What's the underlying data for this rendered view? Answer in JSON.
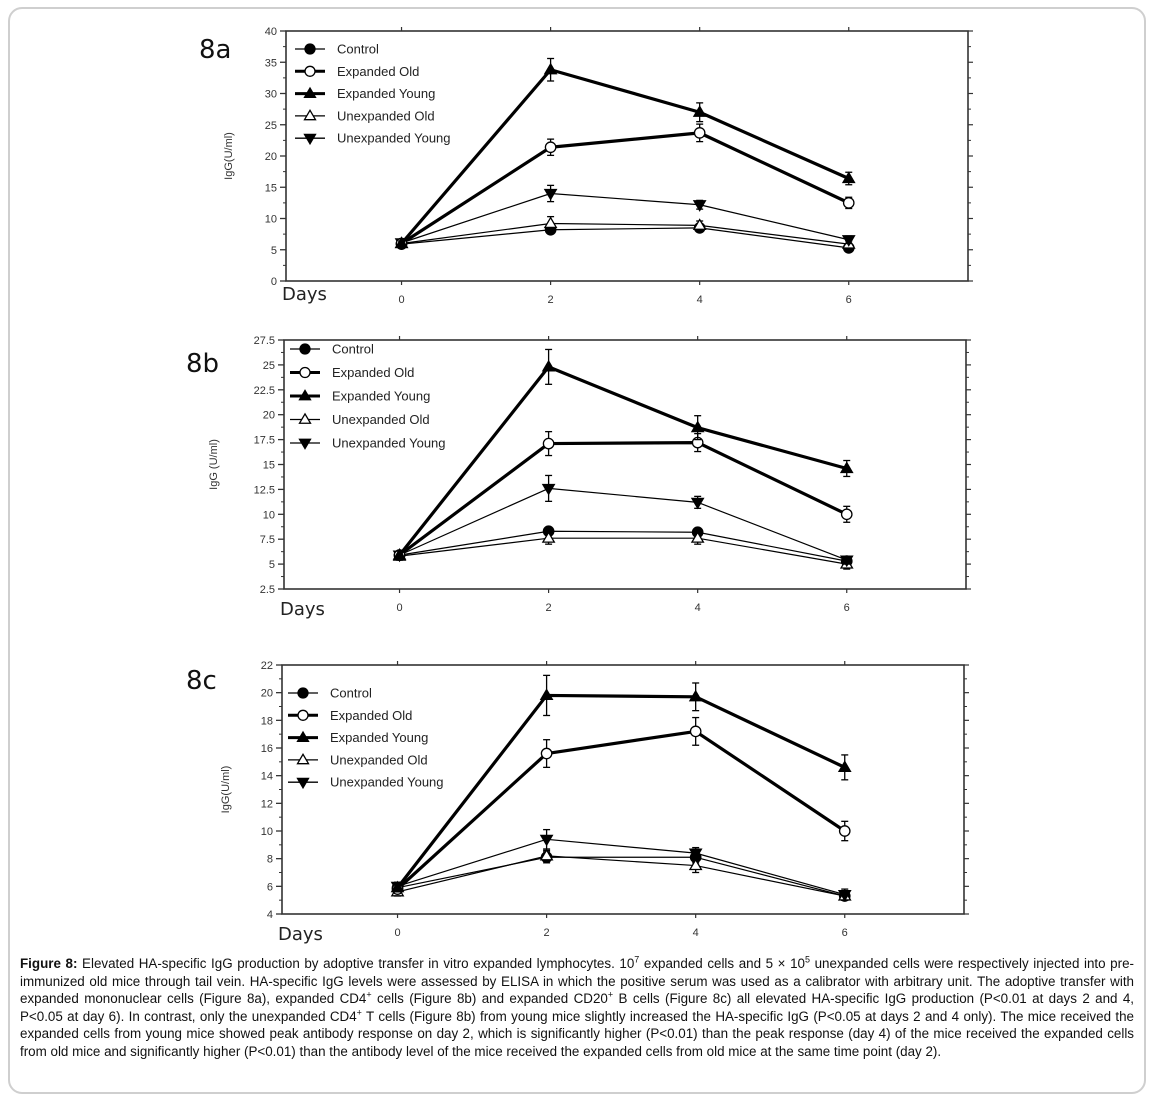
{
  "figure": {
    "caption_label": "Figure 8:",
    "caption_parts": [
      {
        "t": "Elevated HA-specific IgG production by adoptive transfer in vitro expanded lymphocytes. 10"
      },
      {
        "sup": "7"
      },
      {
        "t": " expanded cells and 5 × 10"
      },
      {
        "sup": "5"
      },
      {
        "t": " unexpanded cells were respectively injected into pre-immunized old mice through tail vein.  HA-specific IgG levels were assessed by ELISA in which the positive serum was used as a calibrator with arbitrary unit.  The adoptive transfer with expanded mononuclear cells (Figure 8a), expanded CD4"
      },
      {
        "sup": "+"
      },
      {
        "t": " cells (Figure 8b) and expanded CD20"
      },
      {
        "sup": "+"
      },
      {
        "t": " B cells (Figure 8c) all elevated HA-specific IgG production (P<0.01 at days 2 and 4, P<0.05 at day 6). In contrast, only the unexpanded CD4"
      },
      {
        "sup": "+"
      },
      {
        "t": " T cells (Figure 8b) from young mice slightly increased the HA-specific IgG (P<0.05 at days 2 and 4 only). The mice received the expanded cells from young mice showed peak antibody response on day 2, which is significantly higher (P<0.01) than the peak response (day 4) of the mice received the expanded cells from old mice and significantly higher (P<0.01) than the antibody level of the mice received the expanded cells from old mice at the same time point (day 2)."
      }
    ]
  },
  "chart_data": [
    {
      "type": "line",
      "panel": "8a",
      "title": "8a",
      "xlabel": "Days",
      "ylabel": "IgG(U/ml)",
      "x": [
        0,
        2,
        4,
        6
      ],
      "xticks": [
        "0",
        "2",
        "4",
        "6"
      ],
      "xlim": [
        -1.55,
        7.6
      ],
      "ylim": [
        0,
        40
      ],
      "yticks": [
        "0",
        "5",
        "10",
        "15",
        "20",
        "25",
        "30",
        "35",
        "40"
      ],
      "ytick_values": [
        0,
        5,
        10,
        15,
        20,
        25,
        30,
        35,
        40
      ],
      "grid": false,
      "legend_position": "top-left",
      "series": [
        {
          "name": "Control",
          "marker": "circle-filled",
          "weight": "thin",
          "values": [
            5.9,
            8.2,
            8.5,
            5.3
          ],
          "errors": [
            0.4,
            0.5,
            0.5,
            0.4
          ]
        },
        {
          "name": "Expanded Old",
          "marker": "circle-open",
          "weight": "thick",
          "values": [
            6.0,
            21.4,
            23.7,
            12.5
          ],
          "errors": [
            0.4,
            1.3,
            1.4,
            0.9
          ]
        },
        {
          "name": "Expanded Young",
          "marker": "triangle-up-filled",
          "weight": "thick",
          "values": [
            6.0,
            33.8,
            27.0,
            16.4
          ],
          "errors": [
            0.4,
            1.8,
            1.5,
            1.0
          ]
        },
        {
          "name": "Unexpanded Old",
          "marker": "triangle-up-open",
          "weight": "thin",
          "values": [
            6.0,
            9.2,
            8.9,
            5.9
          ],
          "errors": [
            0.4,
            1.1,
            0.7,
            0.5
          ]
        },
        {
          "name": "Unexpanded Young",
          "marker": "triangle-down-filled",
          "weight": "thin",
          "values": [
            6.1,
            14.0,
            12.2,
            6.6
          ],
          "errors": [
            0.4,
            1.3,
            0.7,
            0.6
          ]
        }
      ]
    },
    {
      "type": "line",
      "panel": "8b",
      "title": "8b",
      "xlabel": "Days",
      "ylabel": "IgG (U/ml)",
      "x": [
        0,
        2,
        4,
        6
      ],
      "xticks": [
        "0",
        "2",
        "4",
        "6"
      ],
      "xlim": [
        -1.55,
        7.6
      ],
      "ylim": [
        2.5,
        27.5
      ],
      "yticks": [
        "2.5",
        "5",
        "7.5",
        "10",
        "12.5",
        "15",
        "17.5",
        "20",
        "22.5",
        "25",
        "27.5"
      ],
      "ytick_values": [
        2.5,
        5,
        7.5,
        10,
        12.5,
        15,
        17.5,
        20,
        22.5,
        25,
        27.5
      ],
      "grid": false,
      "legend_position": "top-left",
      "series": [
        {
          "name": "Control",
          "marker": "circle-filled",
          "weight": "thin",
          "values": [
            5.9,
            8.3,
            8.2,
            5.3
          ],
          "errors": [
            0.4,
            0.4,
            0.4,
            0.4
          ]
        },
        {
          "name": "Expanded Old",
          "marker": "circle-open",
          "weight": "thick",
          "values": [
            5.9,
            17.1,
            17.2,
            10.0
          ],
          "errors": [
            0.4,
            1.2,
            0.9,
            0.8
          ]
        },
        {
          "name": "Expanded Young",
          "marker": "triangle-up-filled",
          "weight": "thick",
          "values": [
            5.9,
            24.8,
            18.7,
            14.6
          ],
          "errors": [
            0.4,
            1.75,
            1.2,
            0.8
          ]
        },
        {
          "name": "Unexpanded Old",
          "marker": "triangle-up-open",
          "weight": "thin",
          "values": [
            5.8,
            7.6,
            7.6,
            5.0
          ],
          "errors": [
            0.4,
            0.6,
            0.6,
            0.5
          ]
        },
        {
          "name": "Unexpanded Young",
          "marker": "triangle-down-filled",
          "weight": "thin",
          "values": [
            5.9,
            12.6,
            11.2,
            5.4
          ],
          "errors": [
            0.4,
            1.3,
            0.6,
            0.4
          ]
        }
      ]
    },
    {
      "type": "line",
      "panel": "8c",
      "title": "8c",
      "xlabel": "Days",
      "ylabel": "IgG(U/ml)",
      "x": [
        0,
        2,
        4,
        6
      ],
      "xticks": [
        "0",
        "2",
        "4",
        "6"
      ],
      "xlim": [
        -1.55,
        7.6
      ],
      "ylim": [
        4,
        22
      ],
      "yticks": [
        "4",
        "6",
        "8",
        "10",
        "12",
        "14",
        "16",
        "18",
        "20",
        "22"
      ],
      "ytick_values": [
        4,
        6,
        8,
        10,
        12,
        14,
        16,
        18,
        20,
        22
      ],
      "grid": false,
      "legend_position": "top-left",
      "series": [
        {
          "name": "Control",
          "marker": "circle-filled",
          "weight": "thin",
          "values": [
            5.9,
            8.1,
            8.1,
            5.3
          ],
          "errors": [
            0.3,
            0.4,
            0.4,
            0.3
          ]
        },
        {
          "name": "Expanded Old",
          "marker": "circle-open",
          "weight": "thick",
          "values": [
            5.8,
            15.6,
            17.2,
            10.0
          ],
          "errors": [
            0.3,
            1.0,
            1.0,
            0.7
          ]
        },
        {
          "name": "Expanded Young",
          "marker": "triangle-up-filled",
          "weight": "thick",
          "values": [
            5.9,
            19.8,
            19.7,
            14.6
          ],
          "errors": [
            0.3,
            1.45,
            1.0,
            0.9
          ]
        },
        {
          "name": "Unexpanded Old",
          "marker": "triangle-up-open",
          "weight": "thin",
          "values": [
            5.6,
            8.2,
            7.5,
            5.3
          ],
          "errors": [
            0.3,
            0.4,
            0.5,
            0.3
          ]
        },
        {
          "name": "Unexpanded Young",
          "marker": "triangle-down-filled",
          "weight": "thin",
          "values": [
            6.0,
            9.4,
            8.4,
            5.4
          ],
          "errors": [
            0.3,
            0.7,
            0.4,
            0.4
          ]
        }
      ]
    }
  ]
}
